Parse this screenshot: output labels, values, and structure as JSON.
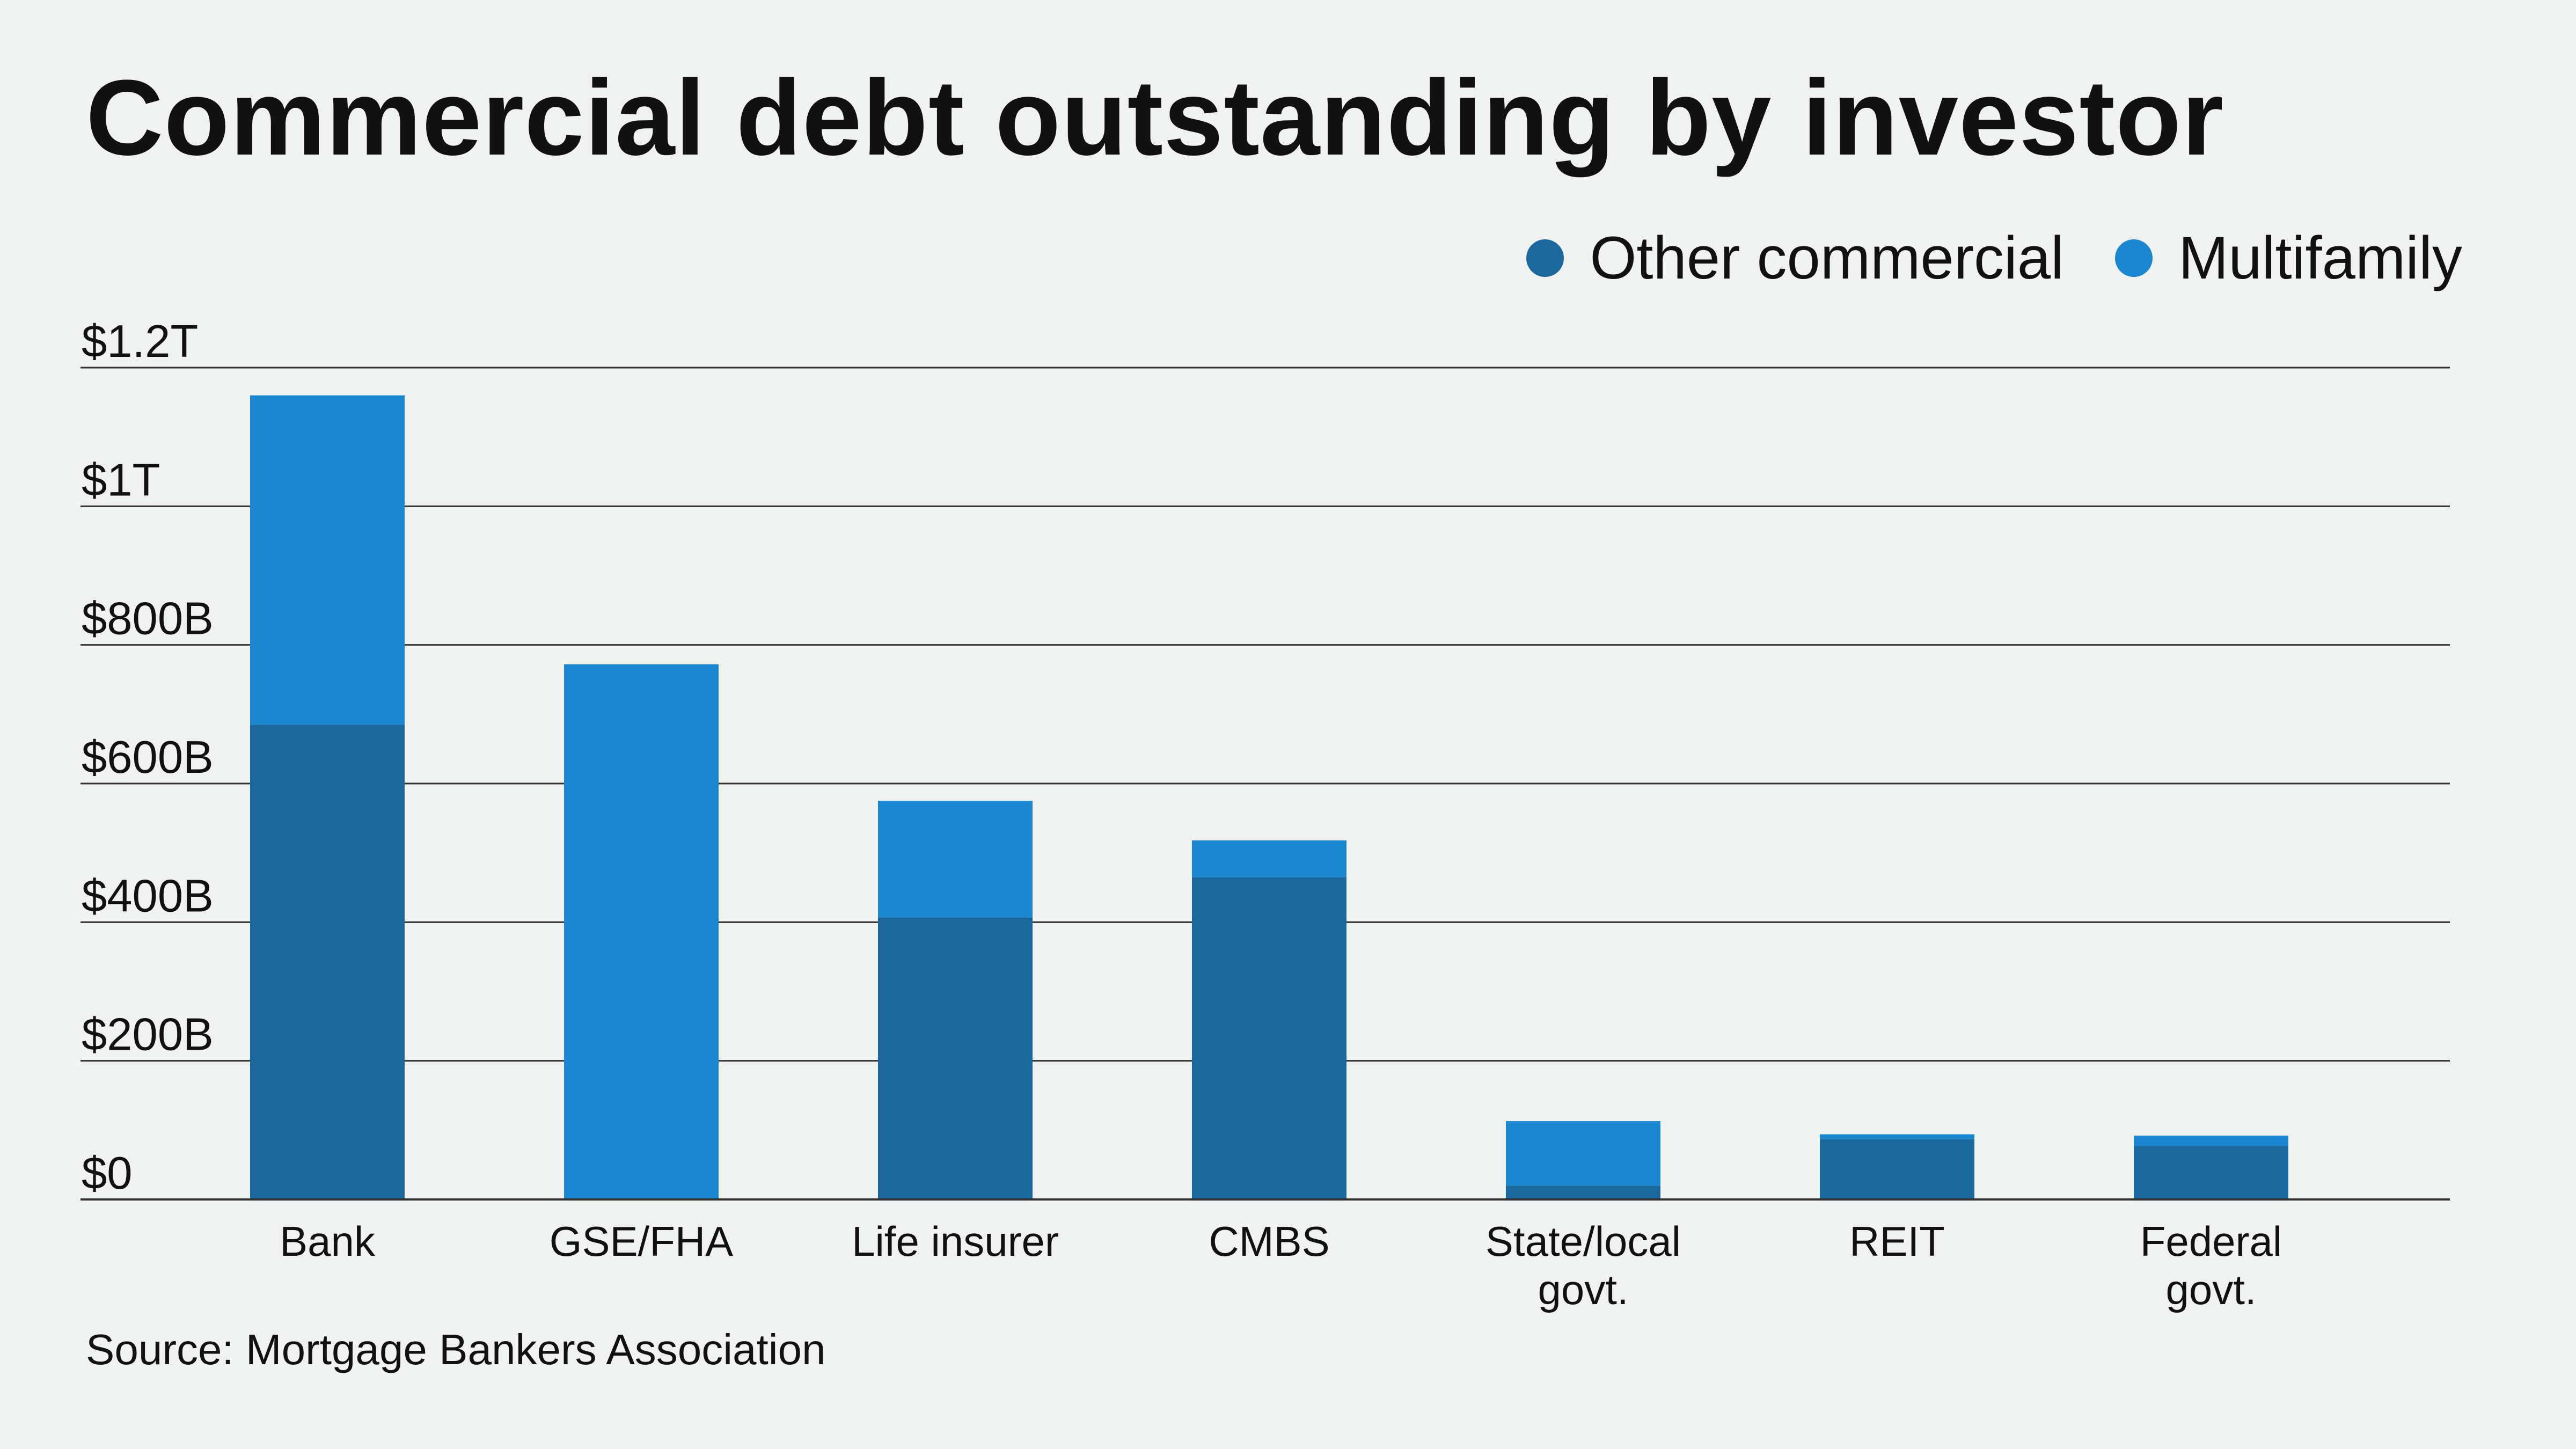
{
  "chart_data": {
    "type": "bar",
    "stacked": true,
    "title": "Commercial debt outstanding by investor",
    "xlabel": "",
    "ylabel": "",
    "categories": [
      [
        "Bank"
      ],
      [
        "GSE/FHA"
      ],
      [
        "Life insurer"
      ],
      [
        "CMBS"
      ],
      [
        "State/local",
        "govt."
      ],
      [
        "REIT"
      ],
      [
        "Federal",
        "govt."
      ]
    ],
    "series": [
      {
        "name": "Other commercial",
        "color": "#1a679d",
        "values": [
          685,
          0,
          407,
          465,
          20,
          87,
          77
        ]
      },
      {
        "name": "Multifamily",
        "color": "#1a87d0",
        "values": [
          475,
          772,
          168,
          53,
          93,
          7,
          15
        ]
      }
    ],
    "ylim": [
      0,
      1200
    ],
    "yticks": [
      0,
      200,
      400,
      600,
      800,
      1000,
      1200
    ],
    "ytick_labels": [
      "$0",
      "$200B",
      "$400B",
      "$600B",
      "$800B",
      "$1T",
      "$1.2T"
    ],
    "grid": true,
    "legend_position": "top-right",
    "source": "Source: Mortgage Bankers Association"
  }
}
